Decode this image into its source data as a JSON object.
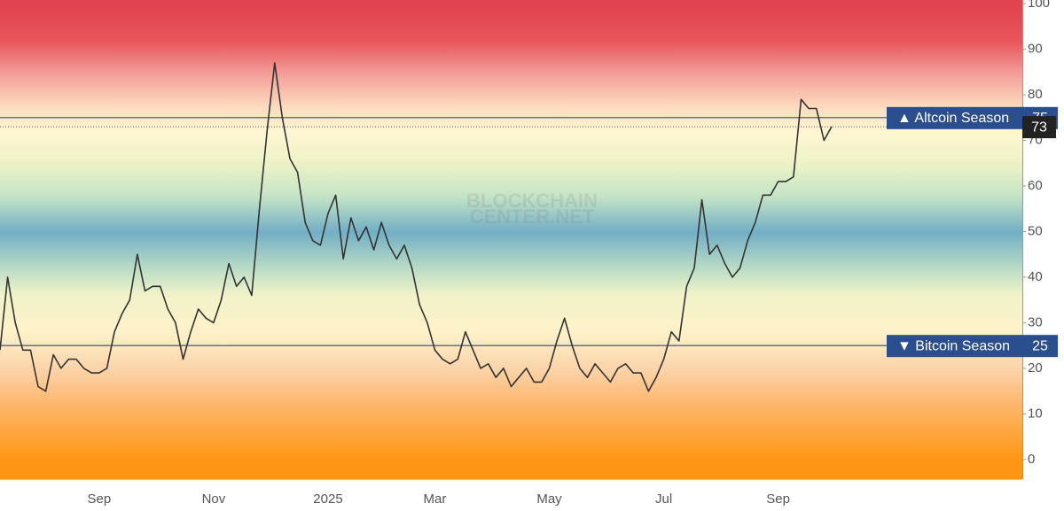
{
  "chart_data": {
    "type": "line",
    "watermark": [
      "BLOCKCHAIN",
      "CENTER.NET"
    ],
    "categories": [
      null,
      null,
      null,
      null,
      null,
      null,
      null,
      null,
      null,
      null,
      null,
      null,
      null,
      "Sep",
      null,
      null,
      null,
      null,
      null,
      null,
      null,
      null,
      null,
      null,
      null,
      null,
      null,
      null,
      "Nov",
      null,
      null,
      null,
      null,
      null,
      null,
      null,
      null,
      null,
      null,
      null,
      null,
      null,
      null,
      "2025",
      null,
      null,
      null,
      null,
      null,
      null,
      null,
      null,
      null,
      null,
      null,
      null,
      null,
      "Mar",
      null,
      null,
      null,
      null,
      null,
      null,
      null,
      null,
      null,
      null,
      null,
      null,
      null,
      null,
      "May",
      null,
      null,
      null,
      null,
      null,
      null,
      null,
      null,
      null,
      null,
      null,
      null,
      null,
      null,
      "Jul",
      null,
      null,
      null,
      null,
      null,
      null,
      null,
      null,
      null,
      null,
      null,
      null,
      null,
      null,
      "Sep",
      null,
      null,
      null,
      null,
      null,
      null,
      null,
      null,
      null,
      null,
      null,
      null,
      null,
      null,
      null,
      null,
      null,
      null,
      null,
      null,
      null,
      null,
      null,
      null,
      null,
      null,
      null,
      null,
      null,
      null,
      null
    ],
    "series": [
      {
        "color": "#333333",
        "values": [
          24,
          40,
          30,
          24,
          24,
          16,
          15,
          23,
          20,
          22,
          22,
          20,
          19,
          19,
          20,
          28,
          32,
          35,
          45,
          37,
          38,
          38,
          33,
          30,
          22,
          28,
          33,
          31,
          30,
          35,
          43,
          38,
          40,
          36,
          55,
          72,
          87,
          75,
          66,
          63,
          52,
          48,
          47,
          54,
          58,
          44,
          53,
          48,
          51,
          46,
          52,
          47,
          44,
          47,
          42,
          34,
          30,
          24,
          22,
          21,
          22,
          28,
          24,
          20,
          21,
          18,
          20,
          16,
          18,
          20,
          17,
          17,
          20,
          26,
          31,
          25,
          20,
          18,
          21,
          19,
          17,
          20,
          21,
          19,
          19,
          15,
          18,
          22,
          28,
          26,
          38,
          42,
          57,
          45,
          47,
          43,
          40,
          42,
          48,
          52,
          58,
          58,
          61,
          61,
          62,
          79,
          77,
          77,
          70,
          73,
          null,
          null,
          null,
          null,
          null,
          null,
          null,
          null,
          null,
          null,
          null,
          null,
          null,
          null,
          null,
          null,
          null,
          null,
          null,
          null,
          null,
          null,
          null,
          null
        ]
      }
    ],
    "reference_lines": [
      {
        "label": "▲ Altcoin Season",
        "value": 75,
        "color": "#2b4f8e"
      },
      {
        "label": "▼ Bitcoin Season",
        "value": 25,
        "color": "#2b4f8e"
      }
    ],
    "current_value": 73,
    "ylim": [
      -4.3,
      100.8
    ],
    "yticks": [
      0,
      10,
      20,
      30,
      40,
      50,
      60,
      70,
      80,
      90,
      100
    ]
  }
}
